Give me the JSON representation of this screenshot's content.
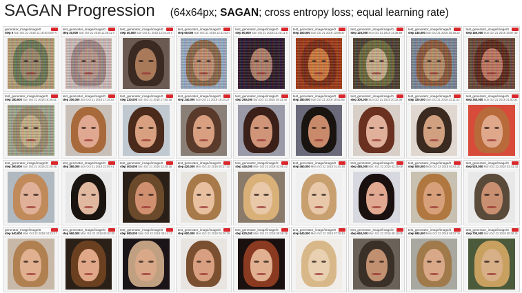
{
  "title": {
    "main": "SAGAN Progression",
    "sub_prefix": "(64x64px; ",
    "sub_bold": "SAGAN",
    "sub_suffix": "; cross entropy loss; equal learning rate)"
  },
  "colors": {
    "close_badge": "#d9262b"
  },
  "cells": [
    {
      "name": "generator_image/image/0",
      "meta": "Sun Oct 21 2018 11:18:40 GMT+1100 (Australian Eastern Daylight Time)",
      "step": "step 0",
      "skin": "#9a8a6a",
      "hair": "#6b7a55",
      "bg": "#b6a27a",
      "noise": true
    },
    {
      "name": "test_generator_image/image/0",
      "meta": "Sun Oct 21 2018 11:28:22 GMT+1100 (Australian Eastern Daylight Time)",
      "step": "step 20,000",
      "skin": "#b89a8c",
      "hair": "#a08a88",
      "bg": "#d0c2c0",
      "noise": true
    },
    {
      "name": "test_generator_image/image/0",
      "meta": "Sun Oct 21 2018 12:01:35 GMT+1100 (Australian Eastern Daylight Time)",
      "step": "step 40,000",
      "skin": "#a87a5a",
      "hair": "#3a2a22",
      "bg": "#6a5a52",
      "noise": false
    },
    {
      "name": "test_generator_image/image/0",
      "meta": "Sun Oct 21 2018 12:41:03 GMT+1100 (Australian Eastern Daylight Time)",
      "step": "step 60,000",
      "skin": "#c09070",
      "hair": "#8a6a4a",
      "bg": "#9ab0c8",
      "noise": true
    },
    {
      "name": "test_generator_image/image/0",
      "meta": "Sun Oct 21 2018 13:20:11 GMT+1100 (Australian Eastern Daylight Time)",
      "step": "step 80,000",
      "skin": "#b0806a",
      "hair": "#2a1a24",
      "bg": "#2a1a30",
      "noise": true
    },
    {
      "name": "test_generator_image/image/0",
      "meta": "Sun Oct 21 2018 13:59:47 GMT+1100 (Australian Eastern Daylight Time)",
      "step": "step 100,000",
      "skin": "#d07a3a",
      "hair": "#7a2a10",
      "bg": "#a03a14",
      "noise": true
    },
    {
      "name": "test_generator_image/image/0",
      "meta": "Sun Oct 21 2018 14:38:59 GMT+1100 (Australian Eastern Daylight Time)",
      "step": "step 120,000",
      "skin": "#c8b08a",
      "hair": "#6a6a3a",
      "bg": "#4a4030",
      "noise": true
    },
    {
      "name": "test_generator_image/image/0",
      "meta": "Sun Oct 21 2018 15:18:22 GMT+1100 (Australian Eastern Daylight Time)",
      "step": "step 140,000",
      "skin": "#b89068",
      "hair": "#8a5a3a",
      "bg": "#7a8a9a",
      "noise": true
    },
    {
      "name": "test_generator_image/image/0",
      "meta": "Sun Oct 21 2018 15:57:40 GMT+1100 (Australian Eastern Daylight Time)",
      "step": "step 160,000",
      "skin": "#c07860",
      "hair": "#5a2818",
      "bg": "#6a4a3a",
      "noise": true
    },
    {
      "name": "test_generator_image/image/0",
      "meta": "Sun Oct 21 2018 16:36:51 GMT+1100 (Australian Eastern Daylight Time)",
      "step": "step 180,000",
      "skin": "#c8b48a",
      "hair": "#9a9070",
      "bg": "#a0a890",
      "noise": true
    },
    {
      "name": "test_generator_image/image/0",
      "meta": "Sun Oct 21 2018 17:16:02 GMT+1100 (Australian Eastern Daylight Time)",
      "step": "step 200,000",
      "skin": "#e0a890",
      "hair": "#a86a3a",
      "bg": "#c8c0b8",
      "noise": false
    },
    {
      "name": "test_generator_image/image/0",
      "meta": "Sun Oct 21 2018 17:55:18 GMT+1100 (Australian Eastern Daylight Time)",
      "step": "step 220,000",
      "skin": "#d8a080",
      "hair": "#4a2a1a",
      "bg": "#c0c8d0",
      "noise": false
    },
    {
      "name": "test_generator_image/image/0",
      "meta": "Sun Oct 21 2018 18:34:27 GMT+1100 (Australian Eastern Daylight Time)",
      "step": "step 240,000",
      "skin": "#d8a080",
      "hair": "#5a3a2a",
      "bg": "#8a8078",
      "noise": false
    },
    {
      "name": "test_generator_image/image/0",
      "meta": "Sun Oct 21 2018 19:13:40 GMT+1100 (Australian Eastern Daylight Time)",
      "step": "step 260,000",
      "skin": "#d09478",
      "hair": "#3a2018",
      "bg": "#9a9aa8",
      "noise": false
    },
    {
      "name": "test_generator_image/image/0",
      "meta": "Sun Oct 21 2018 19:52:55 GMT+1100 (Australian Eastern Daylight Time)",
      "step": "step 280,000",
      "skin": "#c88a6a",
      "hair": "#1a1410",
      "bg": "#6a6a7a",
      "noise": false
    },
    {
      "name": "test_generator_image/image/0",
      "meta": "Sun Oct 21 2018 20:32:09 GMT+1100 (Australian Eastern Daylight Time)",
      "step": "step 300,000",
      "skin": "#e0b09a",
      "hair": "#6a3020",
      "bg": "#d8d0c8",
      "noise": false
    },
    {
      "name": "test_generator_image/image/0",
      "meta": "Sun Oct 21 2018 21:11:22 GMT+1100 (Australian Eastern Daylight Time)",
      "step": "step 320,000",
      "skin": "#d0a080",
      "hair": "#3a2a20",
      "bg": "#e0d8d0",
      "noise": false
    },
    {
      "name": "test_generator_image/image/0",
      "meta": "Sun Oct 21 2018 21:50:34 GMT+1100 (Australian Eastern Daylight Time)",
      "step": "step 340,000",
      "skin": "#e0a88a",
      "hair": "#b86a3a",
      "bg": "#d84a3a",
      "noise": false
    },
    {
      "name": "test_generator_image/image/0",
      "meta": "Sun Oct 21 2018 22:29:48 GMT+1100 (Australian Eastern Daylight Time)",
      "step": "step 360,000",
      "skin": "#e0b098",
      "hair": "#c08a5a",
      "bg": "#b0b8c0",
      "noise": false
    },
    {
      "name": "test_generator_image/image/0",
      "meta": "Sun Oct 21 2018 23:09:01 GMT+1100 (Australian Eastern Daylight Time)",
      "step": "step 380,000",
      "skin": "#e0b8a0",
      "hair": "#1a1410",
      "bg": "#e8e8e8",
      "noise": false
    },
    {
      "name": "test_generator_image/image/0",
      "meta": "Sun Oct 21 2018 23:48:15 GMT+1100 (Australian Eastern Daylight Time)",
      "step": "step 400,000",
      "skin": "#d09070",
      "hair": "#6a4a2a",
      "bg": "#2a2018",
      "noise": false
    },
    {
      "name": "test_generator_image/image/0",
      "meta": "Mon Oct 22 2018 00:27:30 GMT+1100 (Australian Eastern Daylight Time)",
      "step": "step 420,000",
      "skin": "#e8c0a0",
      "hair": "#a87a4a",
      "bg": "#e8e4e0",
      "noise": false
    },
    {
      "name": "test_generator_image/image/0",
      "meta": "Mon Oct 22 2018 01:06:42 GMT+1100 (Australian Eastern Daylight Time)",
      "step": "step 440,000",
      "skin": "#e8c8a8",
      "hair": "#d8b078",
      "bg": "#8a7a6a",
      "noise": false
    },
    {
      "name": "test_generator_image/image/0",
      "meta": "Mon Oct 22 2018 01:45:55 GMT+1100 (Australian Eastern Daylight Time)",
      "step": "step 460,000",
      "skin": "#e8c8a8",
      "hair": "#c8a070",
      "bg": "#f0f0f0",
      "noise": false
    },
    {
      "name": "test_generator_image/image/0",
      "meta": "Mon Oct 22 2018 02:25:08 GMT+1100 (Australian Eastern Daylight Time)",
      "step": "step 480,000",
      "skin": "#e0a890",
      "hair": "#1a1010",
      "bg": "#d8d8e0",
      "noise": false
    },
    {
      "name": "test_generator_image/image/0",
      "meta": "Mon Oct 22 2018 03:04:20 GMT+1100 (Australian Eastern Daylight Time)",
      "step": "step 500,000",
      "skin": "#d8a07a",
      "hair": "#b07840",
      "bg": "#c8c0b0",
      "noise": false
    },
    {
      "name": "test_generator_image/image/0",
      "meta": "Mon Oct 22 2018 03:43:33 GMT+1100 (Australian Eastern Daylight Time)",
      "step": "step 520,000",
      "skin": "#c89070",
      "hair": "#5a4a3a",
      "bg": "#e8e8e8",
      "noise": false
    },
    {
      "name": "generator_image/image/0",
      "meta": "Mon Oct 22 2018 04:22:47 GMT+1100 (Australian Eastern Daylight Time)",
      "step": "step 540,000",
      "skin": "#e0b090",
      "hair": "#b08050",
      "bg": "#c8b8a8",
      "noise": false
    },
    {
      "name": "test_generator_image/image/0",
      "meta": "Mon Oct 22 2018 05:02:00 GMT+1100 (Australian Eastern Daylight Time)",
      "step": "step 560,000",
      "skin": "#e0a888",
      "hair": "#6a4020",
      "bg": "#2a2018",
      "noise": false
    },
    {
      "name": "test_generator_image/image/0",
      "meta": "Mon Oct 22 2018 05:41:13 GMT+1100 (Australian Eastern Daylight Time)",
      "step": "step 580,000",
      "skin": "#d8a888",
      "hair": "#c0a080",
      "bg": "#1a1418",
      "noise": false
    },
    {
      "name": "test_generator_image/image/0",
      "meta": "Mon Oct 22 2018 06:20:26 GMT+1100 (Australian Eastern Daylight Time)",
      "step": "step 600,000",
      "skin": "#d8a080",
      "hair": "#7a5030",
      "bg": "#e8e4e0",
      "noise": false
    },
    {
      "name": "test_generator_image/image/0",
      "meta": "Mon Oct 22 2018 06:59:39 GMT+1100 (Australian Eastern Daylight Time)",
      "step": "step 620,000",
      "skin": "#e0b090",
      "hair": "#8a3a20",
      "bg": "#1a1010",
      "noise": false
    },
    {
      "name": "test_generator_image/image/0",
      "meta": "Mon Oct 22 2018 07:38:52 GMT+1100 (Australian Eastern Daylight Time)",
      "step": "step 640,000",
      "skin": "#e8d0b0",
      "hair": "#d8b888",
      "bg": "#f0ece8",
      "noise": false
    },
    {
      "name": "test_generator_image/image/0",
      "meta": "Mon Oct 22 2018 08:18:05 GMT+1100 (Australian Eastern Daylight Time)",
      "step": "step 660,000",
      "skin": "#c09070",
      "hair": "#3a3028",
      "bg": "#6a6258",
      "noise": false
    },
    {
      "name": "test_generator_image/image/0",
      "meta": "Mon Oct 22 2018 08:57:18 GMT+1100 (Australian Eastern Daylight Time)",
      "step": "step 680,000",
      "skin": "#d8a888",
      "hair": "#a07a4a",
      "bg": "#a8a8a0",
      "noise": false
    },
    {
      "name": "test_generator_image/image/0",
      "meta": "Mon Oct 22 2018 09:36:31 GMT+1100 (Australian Eastern Daylight Time)",
      "step": "step 700,000",
      "skin": "#d8b088",
      "hair": "#c8a060",
      "bg": "#4a5a3a",
      "noise": false
    }
  ]
}
